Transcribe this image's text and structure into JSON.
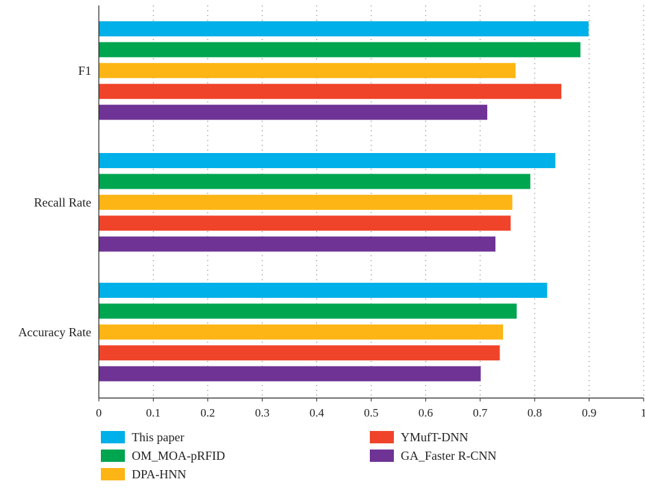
{
  "chart_data": {
    "type": "bar",
    "orientation": "horizontal",
    "title": "",
    "xlabel": "",
    "ylabel": "",
    "xlim": [
      0,
      1
    ],
    "x_ticks": [
      "0",
      "0.1",
      "0.2",
      "0.3",
      "0.4",
      "0.5",
      "0.6",
      "0.7",
      "0.8",
      "0.9",
      "1"
    ],
    "categories": [
      "F1",
      "Recall Rate",
      "Accuracy Rate"
    ],
    "series": [
      {
        "name": "This paper",
        "color": "#00b0e8",
        "values": [
          0.899,
          0.838,
          0.823
        ]
      },
      {
        "name": "OM_MOA-pRFID",
        "color": "#00a550",
        "values": [
          0.884,
          0.792,
          0.767
        ]
      },
      {
        "name": "DPA-HNN",
        "color": "#fdb515",
        "values": [
          0.765,
          0.759,
          0.742
        ]
      },
      {
        "name": "YMufT-DNN",
        "color": "#f0442a",
        "values": [
          0.849,
          0.756,
          0.736
        ]
      },
      {
        "name": "GA_Faster R-CNN",
        "color": "#6e3394",
        "values": [
          0.713,
          0.728,
          0.701
        ]
      }
    ],
    "grid": "vertical dotted",
    "legend_position": "bottom"
  }
}
